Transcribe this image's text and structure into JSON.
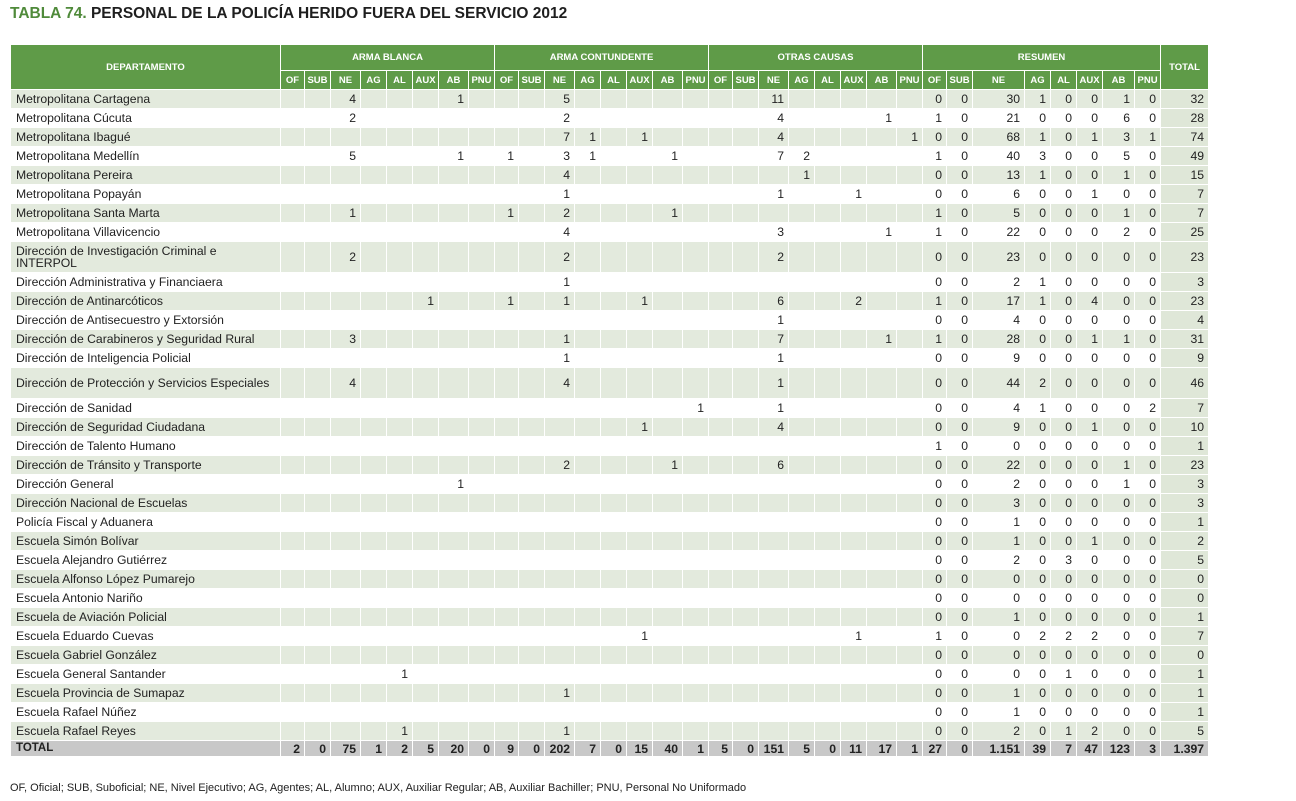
{
  "title": {
    "label": "TABLA 74.",
    "text": "PERSONAL DE LA POLICÍA HERIDO FUERA DEL SERVICIO 2012"
  },
  "header": {
    "departamento": "DEPARTAMENTO",
    "groups": [
      "ARMA BLANCA",
      "ARMA CONTUNDENTE",
      "OTRAS CAUSAS",
      "RESUMEN"
    ],
    "total": "TOTAL",
    "subcols": [
      "OF",
      "SUB",
      "NE",
      "AG",
      "AL",
      "AUX",
      "AB",
      "PNU"
    ]
  },
  "rows": [
    {
      "name": "Metropolitana Cartagena",
      "cells": [
        "",
        "",
        "4",
        "",
        "",
        "",
        "1",
        "",
        "",
        "",
        "5",
        "",
        "",
        "",
        "",
        "",
        "",
        "",
        "11",
        "",
        "",
        "",
        "",
        "",
        "0",
        "0",
        "30",
        "1",
        "0",
        "0",
        "1",
        "0",
        "32"
      ]
    },
    {
      "name": "Metropolitana Cúcuta",
      "cells": [
        "",
        "",
        "2",
        "",
        "",
        "",
        "",
        "",
        "",
        "",
        "2",
        "",
        "",
        "",
        "",
        "",
        "",
        "",
        "4",
        "",
        "",
        "",
        "1",
        "",
        "1",
        "0",
        "21",
        "0",
        "0",
        "0",
        "6",
        "0",
        "28"
      ]
    },
    {
      "name": "Metropolitana Ibagué",
      "cells": [
        "",
        "",
        "",
        "",
        "",
        "",
        "",
        "",
        "",
        "",
        "7",
        "1",
        "",
        "1",
        "",
        "",
        "",
        "",
        "4",
        "",
        "",
        "",
        "",
        "1",
        "0",
        "0",
        "68",
        "1",
        "0",
        "1",
        "3",
        "1",
        "74"
      ]
    },
    {
      "name": "Metropolitana Medellín",
      "cells": [
        "",
        "",
        "5",
        "",
        "",
        "",
        "1",
        "",
        "1",
        "",
        "3",
        "1",
        "",
        "",
        "1",
        "",
        "",
        "",
        "7",
        "2",
        "",
        "",
        "",
        "",
        "1",
        "0",
        "40",
        "3",
        "0",
        "0",
        "5",
        "0",
        "49"
      ]
    },
    {
      "name": "Metropolitana Pereira",
      "cells": [
        "",
        "",
        "",
        "",
        "",
        "",
        "",
        "",
        "",
        "",
        "4",
        "",
        "",
        "",
        "",
        "",
        "",
        "",
        "",
        "1",
        "",
        "",
        "",
        "",
        "0",
        "0",
        "13",
        "1",
        "0",
        "0",
        "1",
        "0",
        "15"
      ]
    },
    {
      "name": "Metropolitana Popayán",
      "cells": [
        "",
        "",
        "",
        "",
        "",
        "",
        "",
        "",
        "",
        "",
        "1",
        "",
        "",
        "",
        "",
        "",
        "",
        "",
        "1",
        "",
        "",
        "1",
        "",
        "",
        "0",
        "0",
        "6",
        "0",
        "0",
        "1",
        "0",
        "0",
        "7"
      ]
    },
    {
      "name": "Metropolitana Santa Marta",
      "cells": [
        "",
        "",
        "1",
        "",
        "",
        "",
        "",
        "",
        "1",
        "",
        "2",
        "",
        "",
        "",
        "1",
        "",
        "",
        "",
        "",
        "",
        "",
        "",
        "",
        "",
        "1",
        "0",
        "5",
        "0",
        "0",
        "0",
        "1",
        "0",
        "7"
      ]
    },
    {
      "name": "Metropolitana Villavicencio",
      "cells": [
        "",
        "",
        "",
        "",
        "",
        "",
        "",
        "",
        "",
        "",
        "4",
        "",
        "",
        "",
        "",
        "",
        "",
        "",
        "3",
        "",
        "",
        "",
        "1",
        "",
        "1",
        "0",
        "22",
        "0",
        "0",
        "0",
        "2",
        "0",
        "25"
      ]
    },
    {
      "name": "Dirección de Investigación Criminal e INTERPOL",
      "tall": true,
      "cells": [
        "",
        "",
        "2",
        "",
        "",
        "",
        "",
        "",
        "",
        "",
        "2",
        "",
        "",
        "",
        "",
        "",
        "",
        "",
        "2",
        "",
        "",
        "",
        "",
        "",
        "0",
        "0",
        "23",
        "0",
        "0",
        "0",
        "0",
        "0",
        "23"
      ]
    },
    {
      "name": "Dirección Administrativa y Financiaera",
      "cells": [
        "",
        "",
        "",
        "",
        "",
        "",
        "",
        "",
        "",
        "",
        "1",
        "",
        "",
        "",
        "",
        "",
        "",
        "",
        "",
        "",
        "",
        "",
        "",
        "",
        "0",
        "0",
        "2",
        "1",
        "0",
        "0",
        "0",
        "0",
        "3"
      ]
    },
    {
      "name": "Dirección de Antinarcóticos",
      "cells": [
        "",
        "",
        "",
        "",
        "",
        "1",
        "",
        "",
        "1",
        "",
        "1",
        "",
        "",
        "1",
        "",
        "",
        "",
        "",
        "6",
        "",
        "",
        "2",
        "",
        "",
        "1",
        "0",
        "17",
        "1",
        "0",
        "4",
        "0",
        "0",
        "23"
      ]
    },
    {
      "name": "Dirección de Antisecuestro y Extorsión",
      "cells": [
        "",
        "",
        "",
        "",
        "",
        "",
        "",
        "",
        "",
        "",
        "",
        "",
        "",
        "",
        "",
        "",
        "",
        "",
        "1",
        "",
        "",
        "",
        "",
        "",
        "0",
        "0",
        "4",
        "0",
        "0",
        "0",
        "0",
        "0",
        "4"
      ]
    },
    {
      "name": "Dirección de Carabineros y Seguridad Rural",
      "cells": [
        "",
        "",
        "3",
        "",
        "",
        "",
        "",
        "",
        "",
        "",
        "1",
        "",
        "",
        "",
        "",
        "",
        "",
        "",
        "7",
        "",
        "",
        "",
        "1",
        "",
        "1",
        "0",
        "28",
        "0",
        "0",
        "1",
        "1",
        "0",
        "31"
      ]
    },
    {
      "name": "Dirección de Inteligencia Policial",
      "cells": [
        "",
        "",
        "",
        "",
        "",
        "",
        "",
        "",
        "",
        "",
        "1",
        "",
        "",
        "",
        "",
        "",
        "",
        "",
        "1",
        "",
        "",
        "",
        "",
        "",
        "0",
        "0",
        "9",
        "0",
        "0",
        "0",
        "0",
        "0",
        "9"
      ]
    },
    {
      "name": "Dirección de Protección y Servicios Especiales",
      "tall": true,
      "cells": [
        "",
        "",
        "4",
        "",
        "",
        "",
        "",
        "",
        "",
        "",
        "4",
        "",
        "",
        "",
        "",
        "",
        "",
        "",
        "1",
        "",
        "",
        "",
        "",
        "",
        "0",
        "0",
        "44",
        "2",
        "0",
        "0",
        "0",
        "0",
        "46"
      ]
    },
    {
      "name": "Dirección de Sanidad",
      "cells": [
        "",
        "",
        "",
        "",
        "",
        "",
        "",
        "",
        "",
        "",
        "",
        "",
        "",
        "",
        "",
        "1",
        "",
        "",
        "1",
        "",
        "",
        "",
        "",
        "",
        "0",
        "0",
        "4",
        "1",
        "0",
        "0",
        "0",
        "2",
        "7"
      ]
    },
    {
      "name": "Dirección de Seguridad Ciudadana",
      "cells": [
        "",
        "",
        "",
        "",
        "",
        "",
        "",
        "",
        "",
        "",
        "",
        "",
        "",
        "1",
        "",
        "",
        "",
        "",
        "4",
        "",
        "",
        "",
        "",
        "",
        "0",
        "0",
        "9",
        "0",
        "0",
        "1",
        "0",
        "0",
        "10"
      ]
    },
    {
      "name": "Dirección de Talento Humano",
      "cells": [
        "",
        "",
        "",
        "",
        "",
        "",
        "",
        "",
        "",
        "",
        "",
        "",
        "",
        "",
        "",
        "",
        "",
        "",
        "",
        "",
        "",
        "",
        "",
        "",
        "1",
        "0",
        "0",
        "0",
        "0",
        "0",
        "0",
        "0",
        "1"
      ]
    },
    {
      "name": "Dirección de Tránsito y Transporte",
      "cells": [
        "",
        "",
        "",
        "",
        "",
        "",
        "",
        "",
        "",
        "",
        "2",
        "",
        "",
        "",
        "1",
        "",
        "",
        "",
        "6",
        "",
        "",
        "",
        "",
        "",
        "0",
        "0",
        "22",
        "0",
        "0",
        "0",
        "1",
        "0",
        "23"
      ]
    },
    {
      "name": "Dirección General",
      "cells": [
        "",
        "",
        "",
        "",
        "",
        "",
        "1",
        "",
        "",
        "",
        "",
        "",
        "",
        "",
        "",
        "",
        "",
        "",
        "",
        "",
        "",
        "",
        "",
        "",
        "0",
        "0",
        "2",
        "0",
        "0",
        "0",
        "1",
        "0",
        "3"
      ]
    },
    {
      "name": "Dirección Nacional de Escuelas",
      "cells": [
        "",
        "",
        "",
        "",
        "",
        "",
        "",
        "",
        "",
        "",
        "",
        "",
        "",
        "",
        "",
        "",
        "",
        "",
        "",
        "",
        "",
        "",
        "",
        "",
        "0",
        "0",
        "3",
        "0",
        "0",
        "0",
        "0",
        "0",
        "3"
      ]
    },
    {
      "name": "Policía Fiscal y Aduanera",
      "cells": [
        "",
        "",
        "",
        "",
        "",
        "",
        "",
        "",
        "",
        "",
        "",
        "",
        "",
        "",
        "",
        "",
        "",
        "",
        "",
        "",
        "",
        "",
        "",
        "",
        "0",
        "0",
        "1",
        "0",
        "0",
        "0",
        "0",
        "0",
        "1"
      ]
    },
    {
      "name": "Escuela  Simón Bolívar",
      "cells": [
        "",
        "",
        "",
        "",
        "",
        "",
        "",
        "",
        "",
        "",
        "",
        "",
        "",
        "",
        "",
        "",
        "",
        "",
        "",
        "",
        "",
        "",
        "",
        "",
        "0",
        "0",
        "1",
        "0",
        "0",
        "1",
        "0",
        "0",
        "2"
      ]
    },
    {
      "name": "Escuela Alejandro Gutiérrez",
      "cells": [
        "",
        "",
        "",
        "",
        "",
        "",
        "",
        "",
        "",
        "",
        "",
        "",
        "",
        "",
        "",
        "",
        "",
        "",
        "",
        "",
        "",
        "",
        "",
        "",
        "0",
        "0",
        "2",
        "0",
        "3",
        "0",
        "0",
        "0",
        "5"
      ]
    },
    {
      "name": "Escuela Alfonso López Pumarejo",
      "cells": [
        "",
        "",
        "",
        "",
        "",
        "",
        "",
        "",
        "",
        "",
        "",
        "",
        "",
        "",
        "",
        "",
        "",
        "",
        "",
        "",
        "",
        "",
        "",
        "",
        "0",
        "0",
        "0",
        "0",
        "0",
        "0",
        "0",
        "0",
        "0"
      ]
    },
    {
      "name": "Escuela Antonio Nariño",
      "cells": [
        "",
        "",
        "",
        "",
        "",
        "",
        "",
        "",
        "",
        "",
        "",
        "",
        "",
        "",
        "",
        "",
        "",
        "",
        "",
        "",
        "",
        "",
        "",
        "",
        "0",
        "0",
        "0",
        "0",
        "0",
        "0",
        "0",
        "0",
        "0"
      ]
    },
    {
      "name": "Escuela de Aviación Policial",
      "cells": [
        "",
        "",
        "",
        "",
        "",
        "",
        "",
        "",
        "",
        "",
        "",
        "",
        "",
        "",
        "",
        "",
        "",
        "",
        "",
        "",
        "",
        "",
        "",
        "",
        "0",
        "0",
        "1",
        "0",
        "0",
        "0",
        "0",
        "0",
        "1"
      ]
    },
    {
      "name": "Escuela Eduardo Cuevas",
      "cells": [
        "",
        "",
        "",
        "",
        "",
        "",
        "",
        "",
        "",
        "",
        "",
        "",
        "",
        "1",
        "",
        "",
        "",
        "",
        "",
        "",
        "",
        "1",
        "",
        "",
        "1",
        "0",
        "0",
        "2",
        "2",
        "2",
        "0",
        "0",
        "7"
      ]
    },
    {
      "name": "Escuela Gabriel González",
      "cells": [
        "",
        "",
        "",
        "",
        "",
        "",
        "",
        "",
        "",
        "",
        "",
        "",
        "",
        "",
        "",
        "",
        "",
        "",
        "",
        "",
        "",
        "",
        "",
        "",
        "0",
        "0",
        "0",
        "0",
        "0",
        "0",
        "0",
        "0",
        "0"
      ]
    },
    {
      "name": "Escuela General Santander",
      "cells": [
        "",
        "",
        "",
        "",
        "1",
        "",
        "",
        "",
        "",
        "",
        "",
        "",
        "",
        "",
        "",
        "",
        "",
        "",
        "",
        "",
        "",
        "",
        "",
        "",
        "0",
        "0",
        "0",
        "0",
        "1",
        "0",
        "0",
        "0",
        "1"
      ]
    },
    {
      "name": "Escuela Provincia de Sumapaz",
      "cells": [
        "",
        "",
        "",
        "",
        "",
        "",
        "",
        "",
        "",
        "",
        "1",
        "",
        "",
        "",
        "",
        "",
        "",
        "",
        "",
        "",
        "",
        "",
        "",
        "",
        "0",
        "0",
        "1",
        "0",
        "0",
        "0",
        "0",
        "0",
        "1"
      ]
    },
    {
      "name": "Escuela Rafael Núñez",
      "cells": [
        "",
        "",
        "",
        "",
        "",
        "",
        "",
        "",
        "",
        "",
        "",
        "",
        "",
        "",
        "",
        "",
        "",
        "",
        "",
        "",
        "",
        "",
        "",
        "",
        "0",
        "0",
        "1",
        "0",
        "0",
        "0",
        "0",
        "0",
        "1"
      ]
    },
    {
      "name": "Escuela Rafael Reyes",
      "cells": [
        "",
        "",
        "",
        "",
        "1",
        "",
        "",
        "",
        "",
        "",
        "1",
        "",
        "",
        "",
        "",
        "",
        "",
        "",
        "",
        "",
        "",
        "",
        "",
        "",
        "0",
        "0",
        "2",
        "0",
        "1",
        "2",
        "0",
        "0",
        "5"
      ]
    }
  ],
  "total_row": {
    "name": "TOTAL",
    "cells": [
      "2",
      "0",
      "75",
      "1",
      "2",
      "5",
      "20",
      "0",
      "9",
      "0",
      "202",
      "7",
      "0",
      "15",
      "40",
      "1",
      "5",
      "0",
      "151",
      "5",
      "0",
      "11",
      "17",
      "1",
      "27",
      "0",
      "1.151",
      "39",
      "7",
      "47",
      "123",
      "3",
      "1.397"
    ]
  },
  "footnote": "OF, Oficial; SUB, Suboficial; NE, Nivel Ejecutivo; AG, Agentes; AL, Alumno; AUX, Auxiliar Regular; AB, Auxiliar Bachiller; PNU, Personal No Uniformado"
}
